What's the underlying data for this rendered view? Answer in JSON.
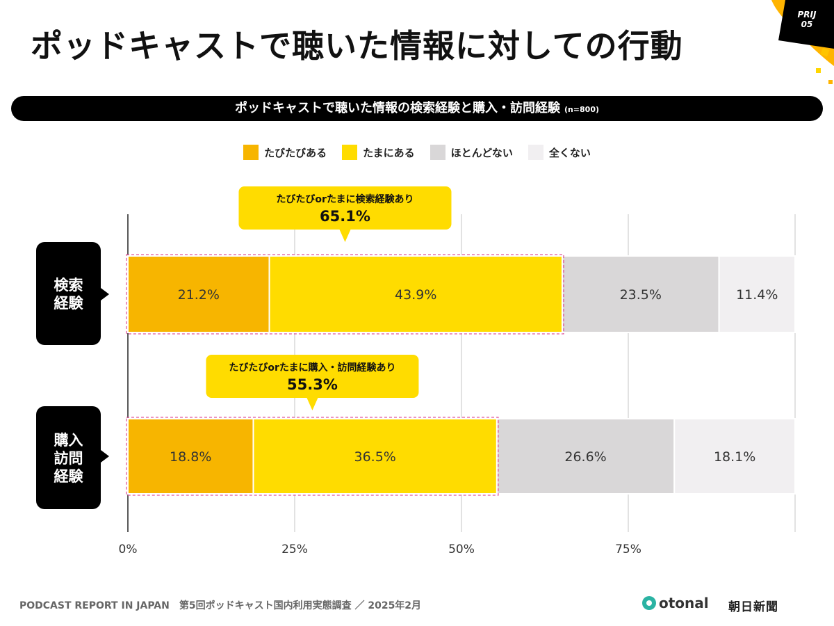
{
  "page": {
    "title": "ポッドキャストで聴いた情報に対しての行動",
    "badge_line1": "PRIJ",
    "badge_line2": "05",
    "subtitle": "ポッドキャストで聴いた情報の検索経験と購入・訪問経験",
    "subtitle_note": "(n=800)",
    "footer_left": "PODCAST REPORT IN JAPAN",
    "footer_right": "第5回ポッドキャスト国内利用実態調査 ／ 2025年2月",
    "logo_otonal": "otonal",
    "logo_asahi": "朝日新聞"
  },
  "colors": {
    "often": "#f7b500",
    "sometimes": "#ffdc00",
    "rarely": "#d9d7d8",
    "never": "#f1eff1",
    "callout": "#ffdc00",
    "dark": "#000000"
  },
  "chart_data": {
    "type": "bar",
    "orientation": "horizontal",
    "stacked": true,
    "title": "ポッドキャストで聴いた情報の検索経験と購入・訪問経験 (n=800)",
    "categories": [
      "検索\n経験",
      "購入\n訪問\n経験"
    ],
    "series": [
      {
        "name": "たびたびある",
        "values": [
          21.2,
          18.8
        ]
      },
      {
        "name": "たまにある",
        "values": [
          43.9,
          36.5
        ]
      },
      {
        "name": "ほとんどない",
        "values": [
          23.5,
          26.6
        ]
      },
      {
        "name": "全くない",
        "values": [
          11.4,
          18.1
        ]
      }
    ],
    "xlim": [
      0,
      100
    ],
    "xticks": [
      0,
      25,
      50,
      75
    ],
    "xtick_labels": [
      "0%",
      "25%",
      "50%",
      "75%"
    ],
    "grid": true,
    "legend": "top-center",
    "annotations": [
      {
        "label": "たびたびorたまに検索経験あり",
        "value": "65.1%"
      },
      {
        "label": "たびたびorたまに購入・訪問経験あり",
        "value": "55.3%"
      }
    ]
  }
}
